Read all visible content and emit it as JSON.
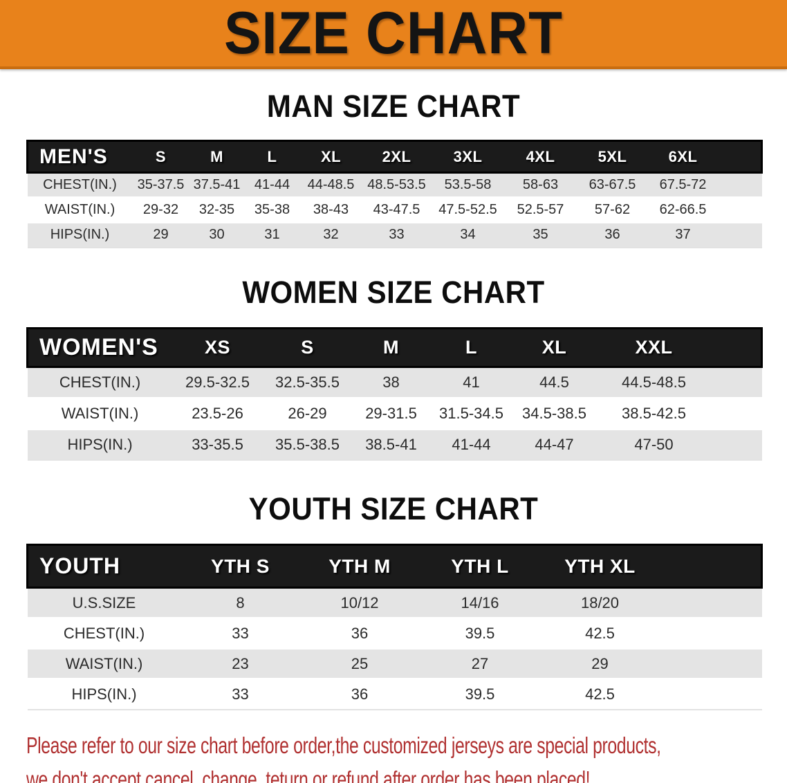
{
  "colors": {
    "banner_bg": "#e8821b",
    "header_bar_bg": "#1b1b1b",
    "row_stripe_gray": "#e4e4e4",
    "disclaimer_red": "#b03030"
  },
  "banner": {
    "title": "SIZE CHART"
  },
  "sections": [
    {
      "heading": "MAN SIZE CHART",
      "table": {
        "label": "MEN'S",
        "columns": [
          "S",
          "M",
          "L",
          "XL",
          "2XL",
          "3XL",
          "4XL",
          "5XL",
          "6XL"
        ],
        "rows": [
          {
            "label": "CHEST(IN.)",
            "values": [
              "35-37.5",
              "37.5-41",
              "41-44",
              "44-48.5",
              "48.5-53.5",
              "53.5-58",
              "58-63",
              "63-67.5",
              "67.5-72"
            ]
          },
          {
            "label": "WAIST(IN.)",
            "values": [
              "29-32",
              "32-35",
              "35-38",
              "38-43",
              "43-47.5",
              "47.5-52.5",
              "52.5-57",
              "57-62",
              "62-66.5"
            ]
          },
          {
            "label": "HIPS(IN.)",
            "values": [
              "29",
              "30",
              "31",
              "32",
              "33",
              "34",
              "35",
              "36",
              "37"
            ]
          }
        ]
      }
    },
    {
      "heading": "WOMEN SIZE CHART",
      "table": {
        "label": "WOMEN'S",
        "columns": [
          "XS",
          "S",
          "M",
          "L",
          "XL",
          "XXL"
        ],
        "rows": [
          {
            "label": "CHEST(IN.)",
            "values": [
              "29.5-32.5",
              "32.5-35.5",
              "38",
              "41",
              "44.5",
              "44.5-48.5"
            ]
          },
          {
            "label": "WAIST(IN.)",
            "values": [
              "23.5-26",
              "26-29",
              "29-31.5",
              "31.5-34.5",
              "34.5-38.5",
              "38.5-42.5"
            ]
          },
          {
            "label": "HIPS(IN.)",
            "values": [
              "33-35.5",
              "35.5-38.5",
              "38.5-41",
              "41-44",
              "44-47",
              "47-50"
            ]
          }
        ]
      }
    },
    {
      "heading": "YOUTH SIZE CHART",
      "table": {
        "label": "YOUTH",
        "columns": [
          "YTH S",
          "YTH M",
          "YTH L",
          "YTH XL"
        ],
        "rows": [
          {
            "label": "U.S.SIZE",
            "values": [
              "8",
              "10/12",
              "14/16",
              "18/20"
            ]
          },
          {
            "label": "CHEST(IN.)",
            "values": [
              "33",
              "36",
              "39.5",
              "42.5"
            ]
          },
          {
            "label": "WAIST(IN.)",
            "values": [
              "23",
              "25",
              "27",
              "29"
            ]
          },
          {
            "label": "HIPS(IN.)",
            "values": [
              "33",
              "36",
              "39.5",
              "42.5"
            ]
          }
        ]
      }
    }
  ],
  "disclaimer": {
    "line1": "Please refer to our size chart before order,the customized jerseys are special products,",
    "line2": "we don't accept cancel, change, teturn or refund after order has been placed!"
  }
}
